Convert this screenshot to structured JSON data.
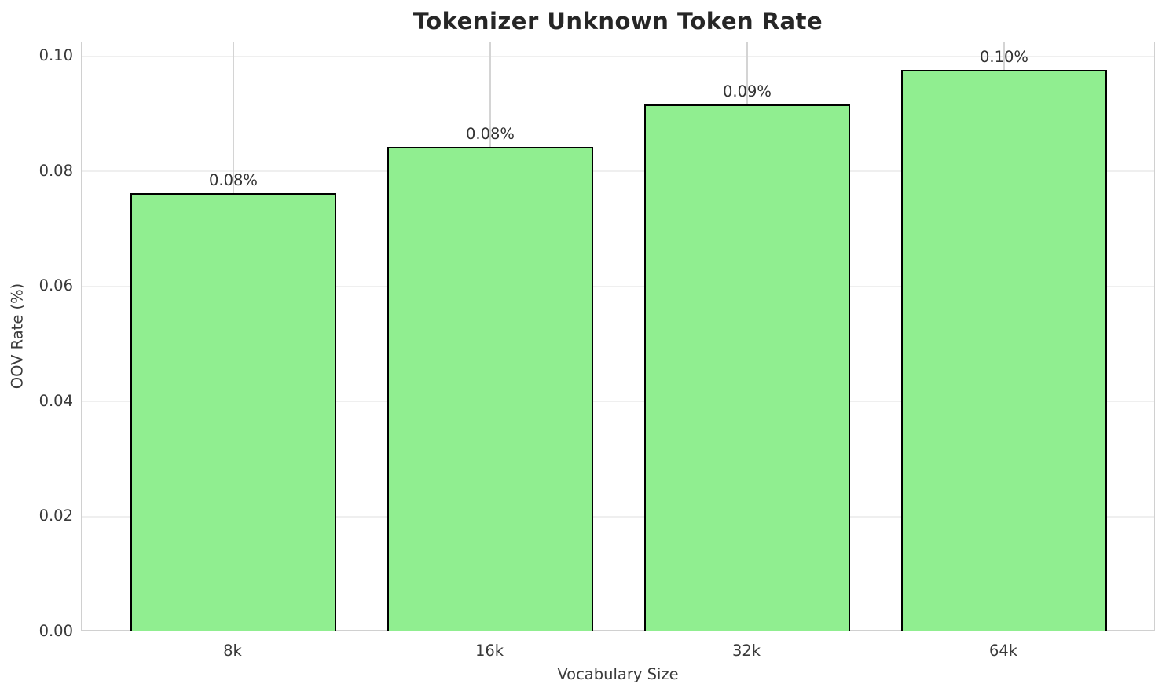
{
  "chart_data": {
    "type": "bar",
    "title": "Tokenizer Unknown Token Rate",
    "xlabel": "Vocabulary Size",
    "ylabel": "OOV Rate (%)",
    "categories": [
      "8k",
      "16k",
      "32k",
      "64k"
    ],
    "values": [
      0.0762,
      0.0843,
      0.0916,
      0.0976
    ],
    "bar_labels": [
      "0.08%",
      "0.08%",
      "0.09%",
      "0.10%"
    ],
    "ylim": [
      0,
      0.1
    ],
    "yticks": [
      {
        "value": 0.0,
        "label": "0.00"
      },
      {
        "value": 0.02,
        "label": "0.02"
      },
      {
        "value": 0.04,
        "label": "0.04"
      },
      {
        "value": 0.06,
        "label": "0.06"
      },
      {
        "value": 0.08,
        "label": "0.08"
      },
      {
        "value": 0.1,
        "label": "0.10"
      }
    ],
    "grid": true,
    "legend": null,
    "style": {
      "bar_fill": "#90EE90",
      "bar_edge": "#000000",
      "hgrid_color": "#efefef",
      "vgrid_color": "#d4d4d4",
      "spine_color": "#d0d0d0",
      "title_color": "#262626",
      "text_color": "#3a3a3a",
      "background": "#ffffff"
    }
  }
}
